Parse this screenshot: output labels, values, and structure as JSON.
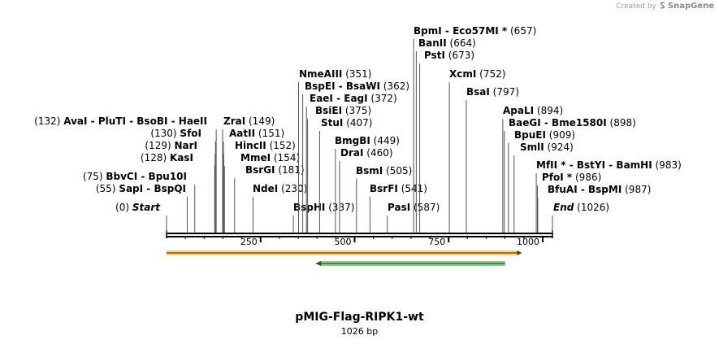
{
  "watermark": {
    "prefix": "Created by",
    "brand": "SnapGene"
  },
  "plasmid": {
    "name": "pMIG-Flag-RIPK1-wt",
    "size_label": "1026 bp",
    "length": 1026
  },
  "ticks": [
    {
      "label": "250",
      "pos": 250
    },
    {
      "label": "500",
      "pos": 500
    },
    {
      "label": "750",
      "pos": 750
    },
    {
      "label": "1000",
      "pos": 1000
    }
  ],
  "sites": [
    {
      "names": [
        "Start"
      ],
      "pos": "(0)",
      "italic": true,
      "side": "left",
      "bp": 0
    },
    {
      "names": [
        "SapI",
        "BspQI"
      ],
      "pos": "(55)",
      "side": "left",
      "bp": 55
    },
    {
      "names": [
        "BbvCI",
        "Bpu10I"
      ],
      "pos": "(75)",
      "side": "left",
      "bp": 75
    },
    {
      "names": [
        "KasI"
      ],
      "pos": "(128)",
      "side": "left",
      "bp": 128
    },
    {
      "names": [
        "NarI"
      ],
      "pos": "(129)",
      "side": "left",
      "bp": 129
    },
    {
      "names": [
        "SfoI"
      ],
      "pos": "(130)",
      "side": "left",
      "bp": 130
    },
    {
      "names": [
        "AvaI",
        "PluTI",
        "BsoBI",
        "HaeII"
      ],
      "pos": "(132)",
      "side": "left",
      "bp": 132
    },
    {
      "names": [
        "ZraI"
      ],
      "pos": "(149)",
      "side": "right",
      "bp": 149
    },
    {
      "names": [
        "AatII"
      ],
      "pos": "(151)",
      "side": "right",
      "bp": 151
    },
    {
      "names": [
        "HincII"
      ],
      "pos": "(152)",
      "side": "right",
      "bp": 152
    },
    {
      "names": [
        "MmeI"
      ],
      "pos": "(154)",
      "side": "right",
      "bp": 154
    },
    {
      "names": [
        "BsrGI"
      ],
      "pos": "(181)",
      "side": "right",
      "bp": 181
    },
    {
      "names": [
        "NdeI"
      ],
      "pos": "(230)",
      "side": "right",
      "bp": 230
    },
    {
      "names": [
        "BspHI"
      ],
      "pos": "(337)",
      "side": "right",
      "bp": 337
    },
    {
      "names": [
        "NmeAIII"
      ],
      "pos": "(351)",
      "side": "right",
      "bp": 351
    },
    {
      "names": [
        "BspEI",
        "BsaWI"
      ],
      "pos": "(362)",
      "side": "right",
      "bp": 362
    },
    {
      "names": [
        "EaeI",
        "EagI"
      ],
      "pos": "(372)",
      "side": "right",
      "bp": 372
    },
    {
      "names": [
        "BsiEI"
      ],
      "pos": "(375)",
      "side": "right",
      "bp": 375
    },
    {
      "names": [
        "StuI"
      ],
      "pos": "(407)",
      "side": "right",
      "bp": 407
    },
    {
      "names": [
        "BmgBI"
      ],
      "pos": "(449)",
      "side": "right",
      "bp": 449
    },
    {
      "names": [
        "DraI"
      ],
      "pos": "(460)",
      "side": "right",
      "bp": 460
    },
    {
      "names": [
        "BsmI"
      ],
      "pos": "(505)",
      "side": "right",
      "bp": 505
    },
    {
      "names": [
        "BsrFI"
      ],
      "pos": "(541)",
      "side": "right",
      "bp": 541
    },
    {
      "names": [
        "PasI"
      ],
      "pos": "(587)",
      "side": "right",
      "bp": 587
    },
    {
      "names": [
        "BpmI",
        "Eco57MI *"
      ],
      "pos": "(657)",
      "side": "right",
      "bp": 657
    },
    {
      "names": [
        "BanII"
      ],
      "pos": "(664)",
      "side": "right",
      "bp": 664
    },
    {
      "names": [
        "PstI"
      ],
      "pos": "(673)",
      "side": "right",
      "bp": 673
    },
    {
      "names": [
        "XcmI"
      ],
      "pos": "(752)",
      "side": "right",
      "bp": 752
    },
    {
      "names": [
        "BsaI"
      ],
      "pos": "(797)",
      "side": "right",
      "bp": 797
    },
    {
      "names": [
        "ApaLI"
      ],
      "pos": "(894)",
      "side": "right",
      "bp": 894
    },
    {
      "names": [
        "BaeGI",
        "Bme1580I"
      ],
      "pos": "(898)",
      "side": "right",
      "bp": 898
    },
    {
      "names": [
        "BpuEI"
      ],
      "pos": "(909)",
      "side": "right",
      "bp": 909
    },
    {
      "names": [
        "SmlI"
      ],
      "pos": "(924)",
      "side": "right",
      "bp": 924
    },
    {
      "names": [
        "MfII *",
        "BstYI",
        "BamHI"
      ],
      "pos": "(983)",
      "side": "right",
      "bp": 983
    },
    {
      "names": [
        "PfoI *"
      ],
      "pos": "(986)",
      "side": "right",
      "bp": 986
    },
    {
      "names": [
        "BfuAI",
        "BspMI"
      ],
      "pos": "(987)",
      "side": "right",
      "bp": 987
    },
    {
      "names": [
        "End"
      ],
      "pos": "(1026)",
      "italic": true,
      "side": "right",
      "bp": 1026
    }
  ],
  "features": [
    {
      "direction": "forward",
      "start_bp": 0,
      "end_bp": 945,
      "color": "#f5a31a"
    },
    {
      "direction": "reverse",
      "start_bp": 400,
      "end_bp": 900,
      "color": "#3cb043"
    }
  ],
  "colors": {
    "backbone": "#000000",
    "line": "#555555"
  }
}
